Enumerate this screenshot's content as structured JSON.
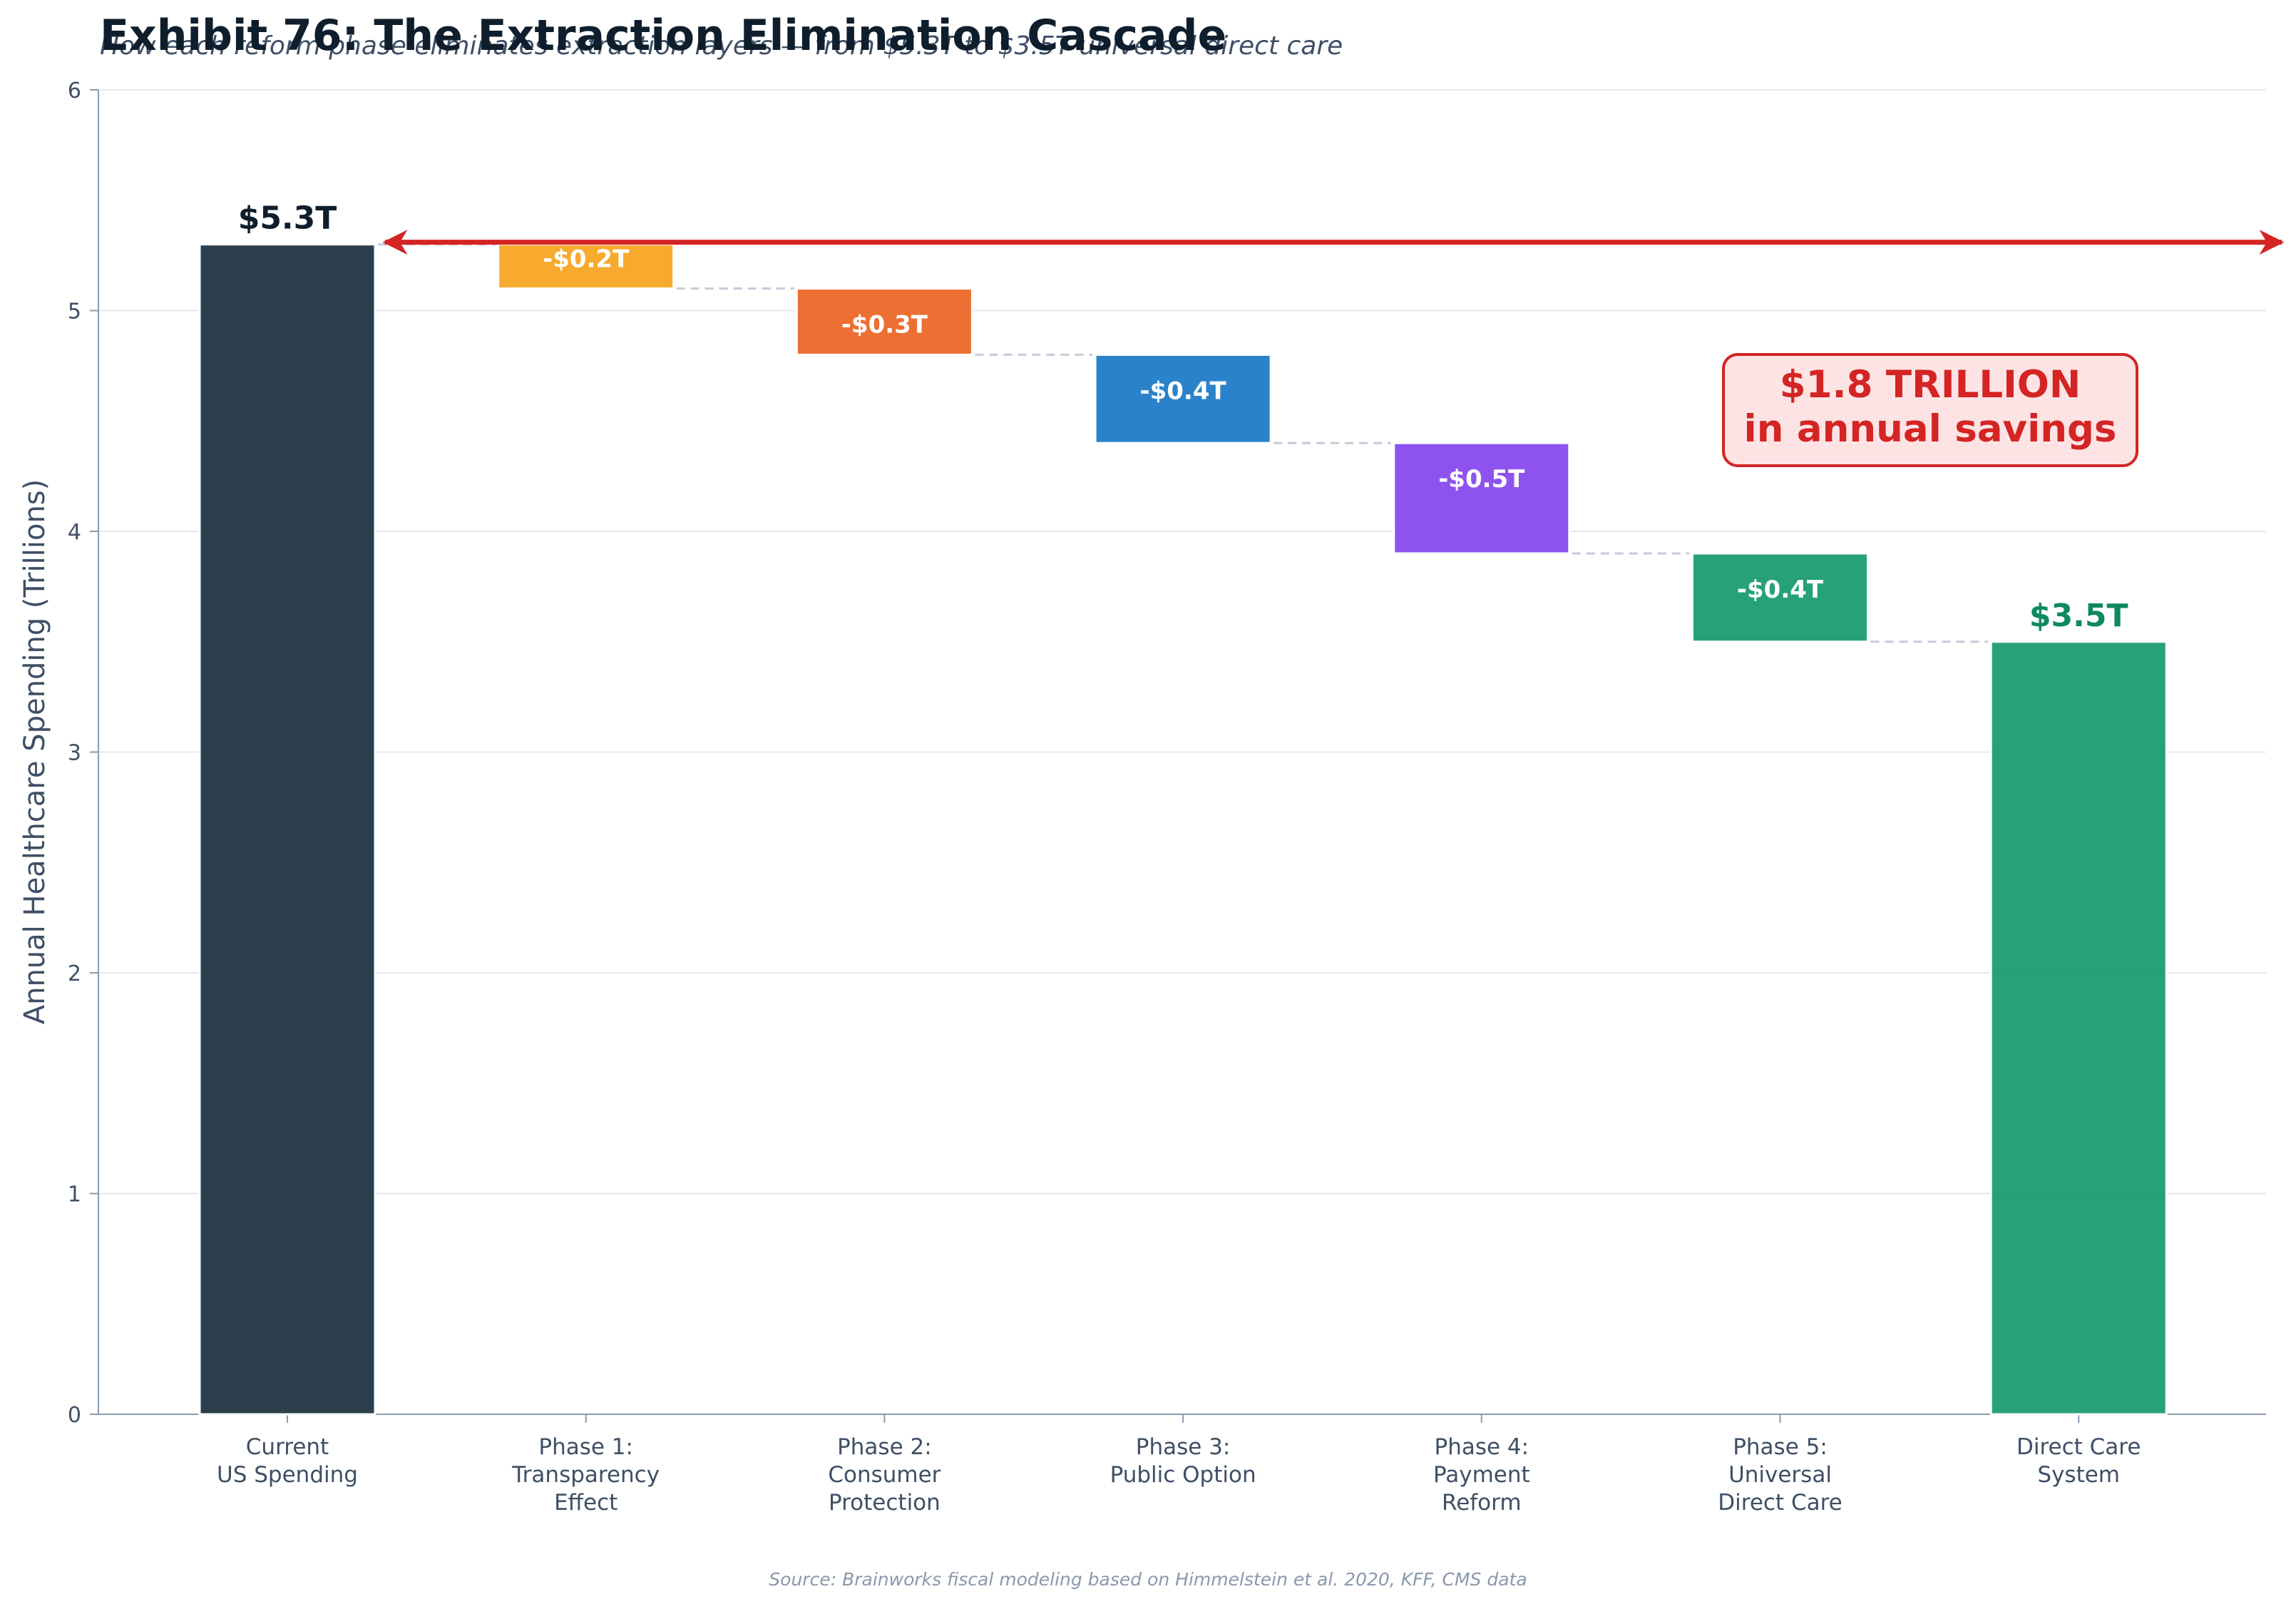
{
  "chart_data": {
    "type": "bar",
    "subtype": "waterfall",
    "title": "Exhibit 76: The Extraction Elimination Cascade",
    "subtitle": "How each reform phase eliminates extraction layers — from $5.3T to $3.5T universal direct care",
    "ylabel": "Annual Healthcare Spending (Trillions)",
    "xlabel": "",
    "ylim": [
      0,
      6
    ],
    "yticks": [
      0,
      1,
      2,
      3,
      4,
      5,
      6
    ],
    "grid": true,
    "categories": [
      [
        "Current",
        "US Spending"
      ],
      [
        "Phase 1:",
        "Transparency",
        "Effect"
      ],
      [
        "Phase 2:",
        "Consumer",
        "Protection"
      ],
      [
        "Phase 3:",
        "Public Option"
      ],
      [
        "Phase 4:",
        "Payment",
        "Reform"
      ],
      [
        "Phase 5:",
        "Universal",
        "Direct Care"
      ],
      [
        "Direct Care",
        "System"
      ]
    ],
    "bars": [
      {
        "kind": "total",
        "start": 0,
        "end": 5.3,
        "label": "$5.3T",
        "color": "#1b2f3e"
      },
      {
        "kind": "delta",
        "start": 5.3,
        "end": 5.1,
        "label": "-$0.2T",
        "color": "#f6a31c"
      },
      {
        "kind": "delta",
        "start": 5.1,
        "end": 4.8,
        "label": "-$0.3T",
        "color": "#ec6322"
      },
      {
        "kind": "delta",
        "start": 4.8,
        "end": 4.4,
        "label": "-$0.4T",
        "color": "#1878c5"
      },
      {
        "kind": "delta",
        "start": 4.4,
        "end": 3.9,
        "label": "-$0.5T",
        "color": "#8444ee"
      },
      {
        "kind": "delta",
        "start": 3.9,
        "end": 3.5,
        "label": "-$0.4T",
        "color": "#15996b"
      },
      {
        "kind": "total",
        "start": 0,
        "end": 3.5,
        "label": "$3.5T",
        "color": "#15996b"
      }
    ],
    "total_label_colors": [
      "#0f1e2d",
      "#0d8a5e"
    ],
    "savings_arrow": {
      "y": 5.3,
      "color": "#d42424"
    },
    "annotation": {
      "lines": [
        "$1.8 TRILLION",
        "in annual savings"
      ],
      "color": "#d42424",
      "fill": "#fde3e3",
      "position": "upper-right"
    },
    "source": "Source: Brainworks fiscal modeling based on Himmelstein et al. 2020, KFF, CMS data"
  }
}
